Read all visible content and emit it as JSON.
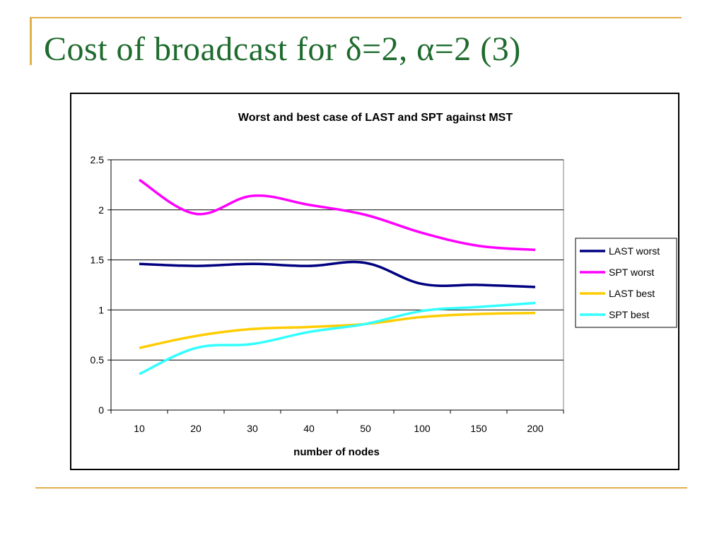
{
  "slide": {
    "title": "Cost of broadcast for δ=2, α=2 (3)"
  },
  "colors": {
    "title": "#1e6b2d",
    "accent_rule": "#e0b04a"
  },
  "chart_data": {
    "type": "line",
    "title": "Worst and best case of LAST and SPT against MST",
    "xlabel": "number of nodes",
    "ylabel": "",
    "categories": [
      "10",
      "20",
      "30",
      "40",
      "50",
      "100",
      "150",
      "200"
    ],
    "ylim": [
      0,
      2.5
    ],
    "yticks": [
      "0",
      "0.5",
      "1",
      "1.5",
      "2",
      "2.5"
    ],
    "grid": "horizontal",
    "legend_position": "right",
    "series": [
      {
        "name": "LAST worst",
        "color": "#000080",
        "values": [
          1.46,
          1.44,
          1.46,
          1.44,
          1.47,
          1.26,
          1.25,
          1.23
        ]
      },
      {
        "name": "SPT worst",
        "color": "#ff00ff",
        "values": [
          2.3,
          1.96,
          2.14,
          2.05,
          1.95,
          1.77,
          1.64,
          1.6
        ]
      },
      {
        "name": "LAST best",
        "color": "#ffcc00",
        "values": [
          0.62,
          0.74,
          0.81,
          0.83,
          0.86,
          0.93,
          0.96,
          0.97
        ]
      },
      {
        "name": "SPT best",
        "color": "#33ffff",
        "values": [
          0.36,
          0.62,
          0.66,
          0.78,
          0.86,
          0.99,
          1.03,
          1.07
        ]
      }
    ]
  }
}
